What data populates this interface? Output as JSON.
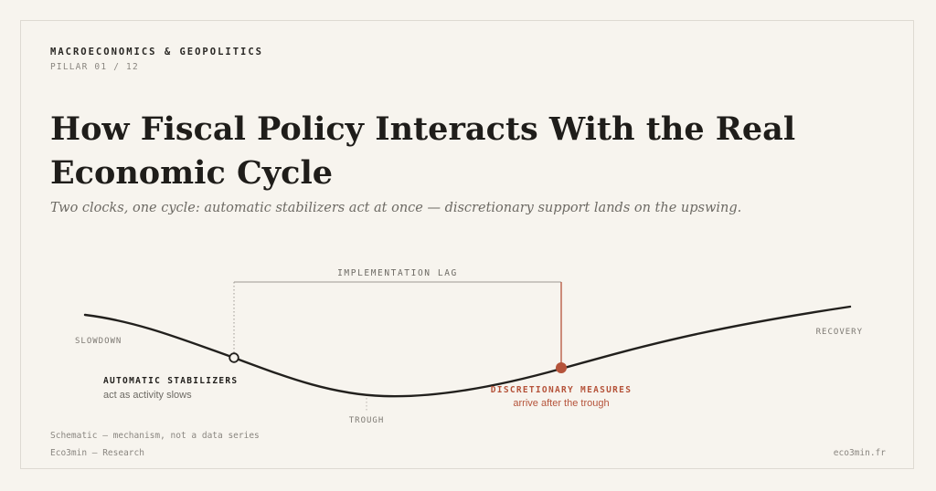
{
  "header": {
    "kicker": "MACROECONOMICS & GEOPOLITICS",
    "pillar": "PILLAR 01 / 12",
    "title": "How Fiscal Policy Interacts With the Real Economic Cycle",
    "subtitle": "Two clocks, one cycle: automatic stabilizers act at once — discretionary support lands on the upswing."
  },
  "diagram": {
    "lag_label": "IMPLEMENTATION LAG",
    "phases": {
      "slowdown": "SLOWDOWN",
      "trough": "TROUGH",
      "recovery": "RECOVERY"
    },
    "stabilizers": {
      "title": "AUTOMATIC STABILIZERS",
      "caption": "act as activity slows"
    },
    "discretionary": {
      "title": "DISCRETIONARY MEASURES",
      "caption": "arrive after the trough"
    },
    "colors": {
      "curve": "#22201d",
      "accent": "#b5533a",
      "bracket": "#9c9891",
      "muted": "#8a8680"
    }
  },
  "footer": {
    "note": "Schematic — mechanism, not a data series",
    "brand": "Eco3min — Research",
    "site": "eco3min.fr"
  }
}
